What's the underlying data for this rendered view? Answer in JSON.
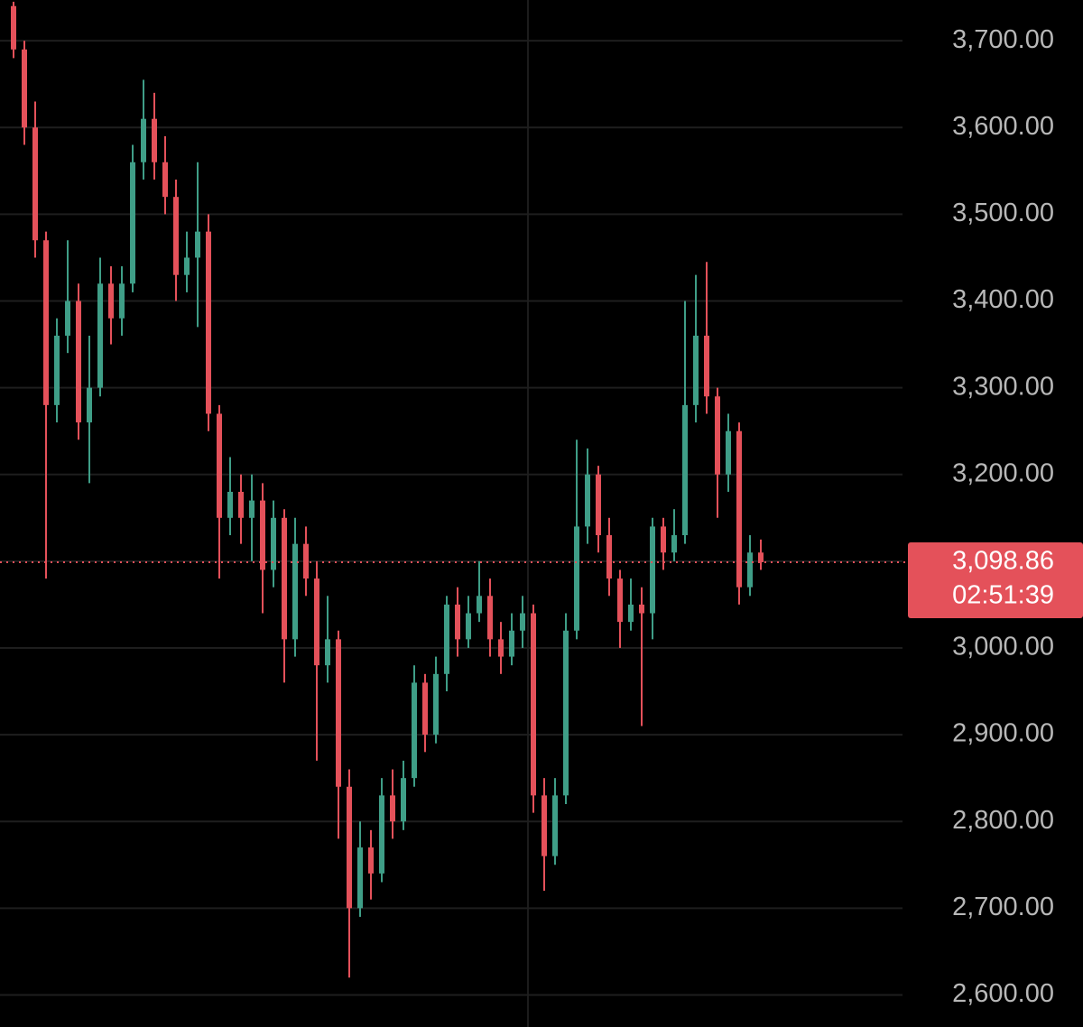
{
  "chart_data": {
    "type": "candlestick",
    "open": [
      3740,
      3690,
      3600,
      3470,
      3280,
      3360,
      3400,
      3260,
      3300,
      3420,
      3380,
      3420,
      3560,
      3610,
      3560,
      3520,
      3430,
      3450,
      3480,
      3270,
      3150,
      3180,
      3150,
      3170,
      3090,
      3150,
      3010,
      3120,
      3080,
      2980,
      3010,
      2840,
      2700,
      2770,
      2740,
      2830,
      2800,
      2850,
      2960,
      2900,
      2970,
      3050,
      3010,
      3040,
      3060,
      3010,
      2990,
      3020,
      3040,
      2830,
      2760,
      2830,
      3020,
      3140,
      3200,
      3130,
      3080,
      3030,
      3050,
      3040,
      3140,
      3110,
      3130,
      3280,
      3360,
      3290,
      3200,
      3250,
      3070,
      3110
    ],
    "high": [
      3745,
      3700,
      3630,
      3480,
      3380,
      3470,
      3420,
      3360,
      3450,
      3440,
      3440,
      3580,
      3655,
      3640,
      3590,
      3540,
      3480,
      3560,
      3500,
      3280,
      3220,
      3200,
      3200,
      3190,
      3170,
      3160,
      3150,
      3140,
      3100,
      3060,
      3020,
      2860,
      2800,
      2790,
      2850,
      2860,
      2870,
      2980,
      2970,
      2990,
      3060,
      3070,
      3060,
      3100,
      3080,
      3030,
      3040,
      3060,
      3050,
      2850,
      2850,
      3040,
      3240,
      3230,
      3210,
      3150,
      3090,
      3080,
      3070,
      3150,
      3150,
      3160,
      3400,
      3430,
      3445,
      3300,
      3270,
      3260,
      3130,
      3125
    ],
    "low": [
      3680,
      3580,
      3450,
      3080,
      3260,
      3340,
      3240,
      3190,
      3290,
      3350,
      3360,
      3410,
      3540,
      3540,
      3500,
      3400,
      3410,
      3370,
      3250,
      3080,
      3130,
      3120,
      3100,
      3040,
      3070,
      2960,
      2990,
      3060,
      2870,
      2960,
      2780,
      2620,
      2690,
      2710,
      2730,
      2780,
      2790,
      2840,
      2880,
      2890,
      2950,
      2990,
      3000,
      3030,
      2990,
      2970,
      2980,
      3000,
      2810,
      2720,
      2750,
      2820,
      3010,
      3120,
      3110,
      3060,
      3000,
      3020,
      2910,
      3010,
      3090,
      3100,
      3120,
      3260,
      3270,
      3150,
      3180,
      3050,
      3060,
      3090
    ],
    "close": [
      3690,
      3600,
      3470,
      3280,
      3360,
      3400,
      3260,
      3300,
      3420,
      3380,
      3420,
      3560,
      3610,
      3560,
      3520,
      3430,
      3450,
      3480,
      3270,
      3150,
      3180,
      3150,
      3170,
      3090,
      3150,
      3010,
      3120,
      3080,
      2980,
      3010,
      2840,
      2700,
      2770,
      2740,
      2830,
      2800,
      2850,
      2960,
      2900,
      2970,
      3050,
      3010,
      3040,
      3060,
      3010,
      2990,
      3020,
      3040,
      2830,
      2760,
      2830,
      3020,
      3140,
      3200,
      3130,
      3080,
      3030,
      3050,
      3040,
      3140,
      3110,
      3130,
      3280,
      3360,
      3290,
      3200,
      3250,
      3070,
      3110,
      3098.86
    ],
    "up_color": "#3f9e87",
    "down_color": "#e4515a",
    "ylim": [
      2563,
      3747
    ],
    "yticks": [
      {
        "value": 2600,
        "label": "2,600.00"
      },
      {
        "value": 2700,
        "label": "2,700.00"
      },
      {
        "value": 2800,
        "label": "2,800.00"
      },
      {
        "value": 2900,
        "label": "2,900.00"
      },
      {
        "value": 3000,
        "label": "3,000.00"
      },
      {
        "value": 3100,
        "label": "3,100.00"
      },
      {
        "value": 3200,
        "label": "3,200.00"
      },
      {
        "value": 3300,
        "label": "3,300.00"
      },
      {
        "value": 3400,
        "label": "3,400.00"
      },
      {
        "value": 3500,
        "label": "3,500.00"
      },
      {
        "value": 3600,
        "label": "3,600.00"
      },
      {
        "value": 3700,
        "label": "3,700.00"
      }
    ],
    "grid": true,
    "last_price": {
      "value": 3098.86,
      "label": "3,098.86"
    },
    "countdown": "02:51:39"
  }
}
